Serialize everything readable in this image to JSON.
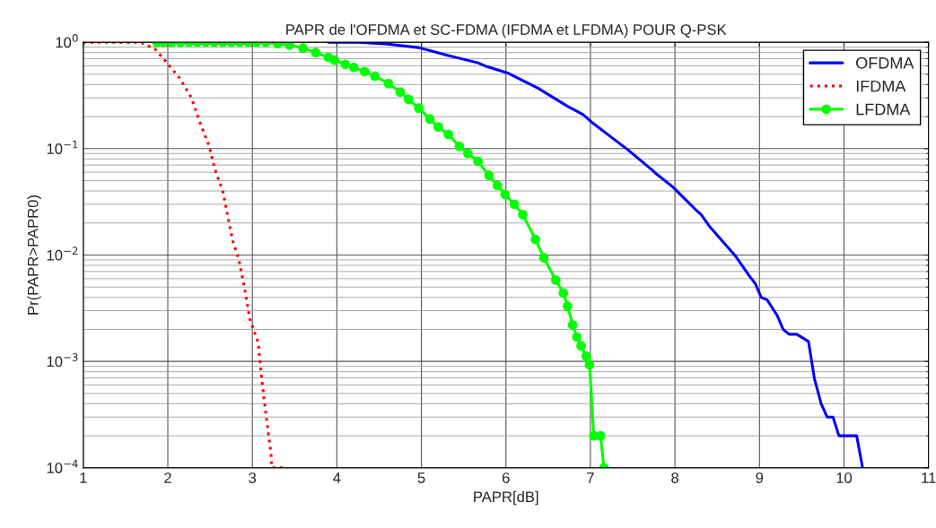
{
  "chart_data": {
    "type": "line",
    "title": "PAPR de l'OFDMA et SC-FDMA (IFDMA et LFDMA) POUR Q-PSK",
    "xlabel": "PAPR[dB]",
    "ylabel": "Pr(PAPR>PAPR0)",
    "log": "y",
    "xlim": [
      1,
      11
    ],
    "xticks": [
      1,
      2,
      3,
      4,
      5,
      6,
      7,
      8,
      9,
      10,
      11
    ],
    "ylim": [
      0.0001,
      1
    ],
    "yticks": [
      {
        "value": 0.0001,
        "label": "10$^{−4}$"
      },
      {
        "value": 0.001,
        "label": "10$^{−3}$"
      },
      {
        "value": 0.01,
        "label": "10$^{−2}$"
      },
      {
        "value": 0.1,
        "label": "10$^{−1}$"
      },
      {
        "value": 1,
        "label": "10$^{0}$"
      }
    ],
    "grid": true,
    "legend": "top right",
    "series": [
      {
        "name": "OFDMA",
        "color": "#0000ff",
        "line_style": "solid",
        "marker": "none",
        "x": [
          3.9,
          4.26,
          4.61,
          4.97,
          5.32,
          5.67,
          5.75,
          6.03,
          6.38,
          6.73,
          6.91,
          7.02,
          7.44,
          7.73,
          7.79,
          7.97,
          8.26,
          8.31,
          8.4,
          8.51,
          8.72,
          8.89,
          8.95,
          9.02,
          9.09,
          9.21,
          9.28,
          9.35,
          9.44,
          9.58,
          9.65,
          9.73,
          9.8,
          9.87,
          9.94,
          10.15,
          10.22
        ],
        "values": [
          1,
          1,
          0.96,
          0.89,
          0.75,
          0.64,
          0.6,
          0.51,
          0.37,
          0.25,
          0.21,
          0.176,
          0.098,
          0.063,
          0.057,
          0.044,
          0.026,
          0.024,
          0.019,
          0.015,
          0.0097,
          0.0062,
          0.0054,
          0.004,
          0.0038,
          0.0027,
          0.002,
          0.0018,
          0.0018,
          0.00154,
          0.00069,
          0.0004,
          0.0003,
          0.0003,
          0.0002,
          0.0002,
          0.0001
        ]
      },
      {
        "name": "IFDMA",
        "color": "#ff0000",
        "line_style": "dotted",
        "marker": "none",
        "x": [
          1.0,
          1.68,
          1.85,
          1.99,
          2.14,
          2.28,
          2.38,
          2.49,
          2.56,
          2.65,
          2.72,
          2.77,
          2.84,
          2.91,
          2.97,
          3.07,
          3.11,
          3.16,
          3.22,
          3.23,
          3.39
        ],
        "values": [
          1,
          1,
          0.86,
          0.64,
          0.46,
          0.3,
          0.176,
          0.105,
          0.063,
          0.04,
          0.021,
          0.0134,
          0.0091,
          0.0048,
          0.0025,
          0.0015,
          0.00069,
          0.00032,
          0.000138,
          0.0001,
          0.0001
        ]
      },
      {
        "name": "LFDMA",
        "color": "#00ff00",
        "line_style": "solid",
        "marker": "circle",
        "x": [
          1.87,
          1.95,
          2.05,
          2.15,
          2.25,
          2.35,
          2.45,
          2.55,
          2.65,
          2.75,
          2.85,
          2.95,
          3.05,
          3.16,
          3.3,
          3.44,
          3.6,
          3.75,
          3.9,
          3.97,
          4.1,
          4.2,
          4.33,
          4.45,
          4.61,
          4.75,
          4.85,
          4.97,
          5.1,
          5.2,
          5.32,
          5.45,
          5.55,
          5.67,
          5.8,
          5.9,
          5.99,
          6.1,
          6.2,
          6.35,
          6.45,
          6.59,
          6.68,
          6.73,
          6.79,
          6.84,
          6.89,
          6.95,
          6.99,
          7.04,
          7.12,
          7.16
        ],
        "values": [
          1,
          1,
          1,
          1,
          1,
          1,
          1,
          1,
          1,
          1,
          1,
          1,
          1,
          1,
          0.97,
          0.94,
          0.88,
          0.8,
          0.72,
          0.68,
          0.62,
          0.58,
          0.53,
          0.48,
          0.41,
          0.34,
          0.29,
          0.24,
          0.19,
          0.16,
          0.136,
          0.105,
          0.09,
          0.076,
          0.056,
          0.045,
          0.037,
          0.03,
          0.024,
          0.014,
          0.0094,
          0.0058,
          0.0044,
          0.0033,
          0.0022,
          0.0017,
          0.0014,
          0.00112,
          0.00093,
          0.0002,
          0.0002,
          0.0001
        ]
      }
    ]
  }
}
